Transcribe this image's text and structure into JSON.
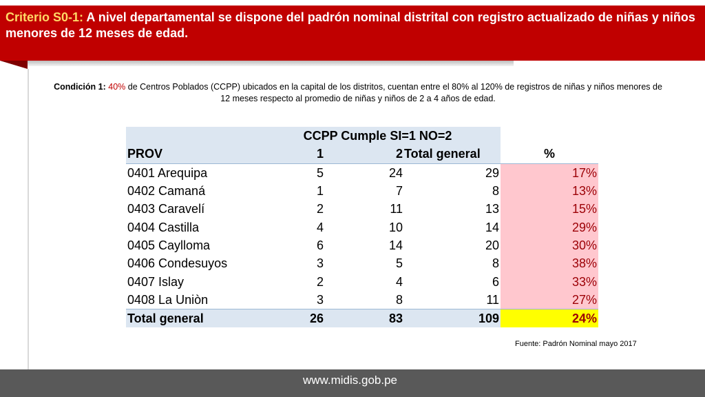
{
  "header": {
    "label": "Criterio S0-1:",
    "text": " A nivel departamental se dispone del padrón nominal distrital con registro actualizado de niñas y niños menores de 12 meses de edad."
  },
  "condition": {
    "label": "Condición 1:",
    "percent": "40%",
    "text": " de Centros Poblados (CCPP) ubicados en la capital de los distritos, cuentan entre el 80% al 120% de registros de niñas y niños menores de 12 meses respecto al promedio de niñas y niños de 2 a 4 años de edad."
  },
  "table": {
    "title": "CCPP Cumple SI=1 NO=2",
    "columns": [
      "PROV",
      "1",
      "2",
      "Total general",
      "%"
    ],
    "rows": [
      [
        "0401 Arequipa",
        "5",
        "24",
        "29",
        "17%"
      ],
      [
        "0402 Camaná",
        "1",
        "7",
        "8",
        "13%"
      ],
      [
        "0403 Caravelí",
        "2",
        "11",
        "13",
        "15%"
      ],
      [
        "0404 Castilla",
        "4",
        "10",
        "14",
        "29%"
      ],
      [
        "0405 Caylloma",
        "6",
        "14",
        "20",
        "30%"
      ],
      [
        "0406 Condesuyos",
        "3",
        "5",
        "8",
        "38%"
      ],
      [
        "0407 Islay",
        "2",
        "4",
        "6",
        "33%"
      ],
      [
        "0408 La Uniòn",
        "3",
        "8",
        "11",
        "27%"
      ]
    ],
    "total": [
      "Total general",
      "26",
      "83",
      "109",
      "24%"
    ]
  },
  "source": "Fuente: Padrón Nominal mayo 2017",
  "footer": {
    "url": "www.midis.gob.pe"
  },
  "colors": {
    "header_red": "#c00000",
    "highlight_yellow_text": "#ffd966",
    "table_header_blue": "#dce6f1",
    "percent_cell_pink": "#ffc7ce",
    "percent_text": "#9c0006",
    "total_percent_yellow": "#ffff00",
    "footer_gray": "#595959"
  }
}
